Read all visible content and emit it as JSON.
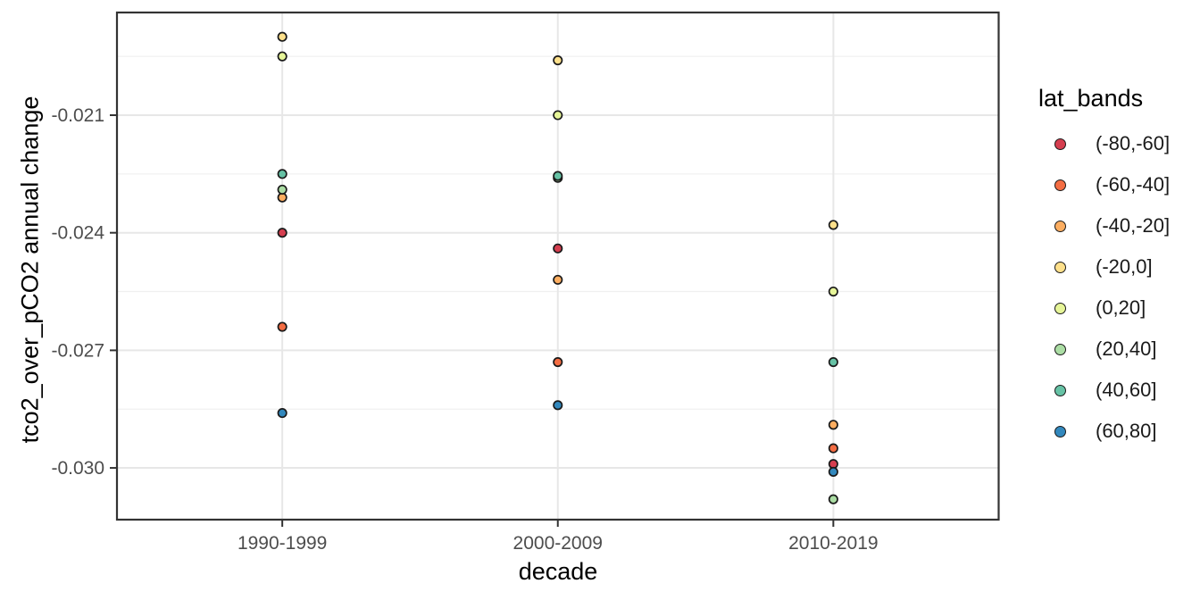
{
  "chart_data": {
    "type": "scatter",
    "title": "",
    "xlabel": "decade",
    "ylabel": "tco2_over_pCO2 annual change",
    "legend_title": "lat_bands",
    "legend_position": "right",
    "grid": true,
    "categories": [
      "1990-1999",
      "2000-2009",
      "2010-2019"
    ],
    "y_ticks": [
      -0.021,
      -0.024,
      -0.027,
      -0.03
    ],
    "y_tick_labels": [
      "-0.021",
      "-0.024",
      "-0.027",
      "-0.030"
    ],
    "y_minor_ticks": [
      -0.0195,
      -0.0225,
      -0.0255,
      -0.0285
    ],
    "ylim": [
      -0.03132,
      -0.01838
    ],
    "series": [
      {
        "name": "(-80,-60]",
        "color": "#D53E4F",
        "values": [
          -0.024,
          -0.0244,
          -0.0299
        ]
      },
      {
        "name": "(-60,-40]",
        "color": "#F46D43",
        "values": [
          -0.0264,
          -0.0273,
          -0.0295
        ]
      },
      {
        "name": "(-40,-20]",
        "color": "#FDAE61",
        "values": [
          -0.0231,
          -0.0252,
          -0.0289
        ]
      },
      {
        "name": "(-20,0]",
        "color": "#FEE08B",
        "values": [
          -0.019,
          -0.0196,
          -0.0238
        ]
      },
      {
        "name": "(0,20]",
        "color": "#E6F598",
        "values": [
          -0.0195,
          -0.021,
          -0.0255
        ]
      },
      {
        "name": "(20,40]",
        "color": "#ABDDA4",
        "values": [
          -0.0229,
          -0.0226,
          -0.0308
        ]
      },
      {
        "name": "(40,60]",
        "color": "#66C2A5",
        "values": [
          -0.0225,
          -0.02255,
          -0.0273
        ]
      },
      {
        "name": "(60,80]",
        "color": "#3288BD",
        "values": [
          -0.0286,
          -0.0284,
          -0.0301
        ]
      }
    ]
  },
  "colors": {
    "background": "#ffffff",
    "panel_border": "#333333",
    "grid_major": "#e7e7e7",
    "grid_minor": "#f0f0f0",
    "tick_mark": "#333333",
    "tick_label": "#4d4d4d",
    "point_stroke": "#1a1a1a"
  }
}
